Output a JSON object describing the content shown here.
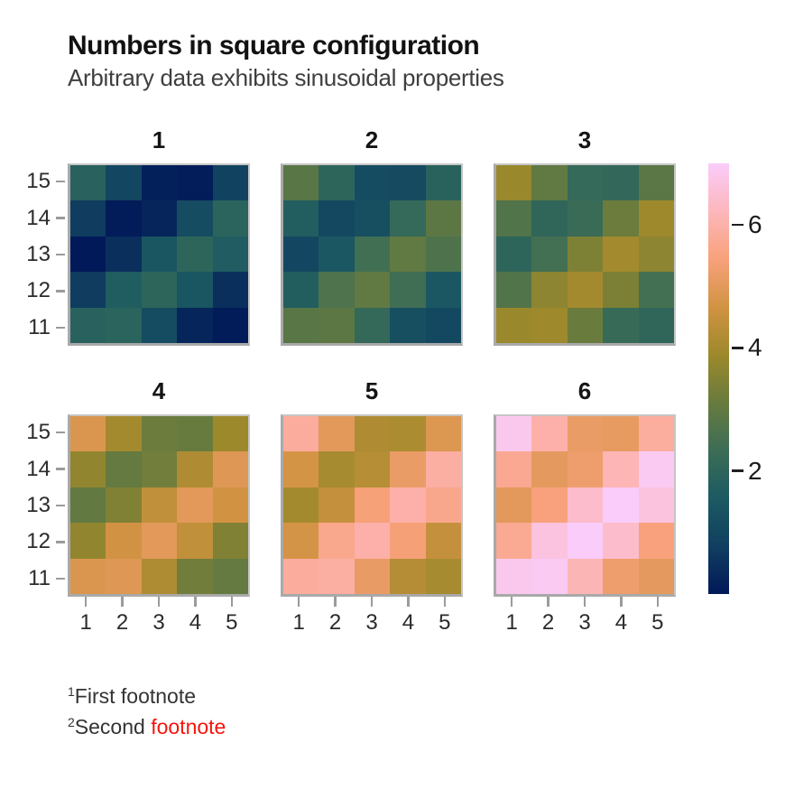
{
  "title": "Numbers in square configuration",
  "subtitle": "Arbitrary data exhibits sinusoidal properties",
  "footnotes": [
    {
      "sup": "1",
      "text": "First footnote",
      "highlight": ""
    },
    {
      "sup": "2",
      "text": "Second ",
      "highlight": "footnote"
    }
  ],
  "colors": {
    "background": "#ffffff",
    "title": "#121212",
    "subtitle": "#3f3f3f",
    "axis_label": "#2b2b2b",
    "tick_mark": "#9b9b9b",
    "panel_frame": "#c6c6c6",
    "colorbar_tick": "#1f1f1f",
    "footnote_text": "#333333",
    "footnote_highlight": "#f5150c"
  },
  "chart_data": {
    "type": "heatmap",
    "title": "Numbers in square configuration",
    "subtitle": "Arbitrary data exhibits sinusoidal properties",
    "layout": "2 rows x 3 columns of facet panels, shared axes, colorbar at right",
    "x_ticks": [
      "1",
      "2",
      "3",
      "4",
      "5"
    ],
    "y_ticks": [
      "15",
      "14",
      "13",
      "12",
      "11"
    ],
    "rows_listed_top_to_bottom": true,
    "grid": false,
    "colormap": {
      "name": "batlow",
      "stops": [
        {
          "t": 0.0,
          "c": "#011959"
        },
        {
          "t": 0.111,
          "c": "#103F60"
        },
        {
          "t": 0.222,
          "c": "#1C5A62"
        },
        {
          "t": 0.333,
          "c": "#3C6D56"
        },
        {
          "t": 0.444,
          "c": "#687B3E"
        },
        {
          "t": 0.556,
          "c": "#9D892B"
        },
        {
          "t": 0.667,
          "c": "#D29343"
        },
        {
          "t": 0.778,
          "c": "#F8A17B"
        },
        {
          "t": 0.889,
          "c": "#FDB7BC"
        },
        {
          "t": 1.0,
          "c": "#FACCFA"
        }
      ]
    },
    "colorbar": {
      "domain": [
        0,
        7
      ],
      "position": "right",
      "ticks": [
        {
          "value": 6,
          "label": "6"
        },
        {
          "value": 4,
          "label": "4"
        },
        {
          "value": 2,
          "label": "2"
        }
      ]
    },
    "facets": [
      {
        "label": "1",
        "rows": [
          [
            1.84,
            0.99,
            0.15,
            0.09,
            0.87
          ],
          [
            0.71,
            0.04,
            0.25,
            1.15,
            1.91
          ],
          [
            0.0,
            0.46,
            1.42,
            1.99,
            1.65
          ],
          [
            0.72,
            1.66,
            1.99,
            1.41,
            0.46
          ],
          [
            1.84,
            1.91,
            1.14,
            0.24,
            0.04
          ]
        ]
      },
      {
        "label": "2",
        "rows": [
          [
            2.84,
            1.99,
            1.15,
            1.09,
            1.87
          ],
          [
            1.71,
            1.04,
            1.25,
            2.15,
            2.91
          ],
          [
            1.0,
            1.46,
            2.42,
            2.99,
            2.65
          ],
          [
            1.72,
            2.66,
            2.99,
            2.41,
            1.46
          ],
          [
            2.84,
            2.91,
            2.14,
            1.24,
            1.04
          ]
        ]
      },
      {
        "label": "3",
        "rows": [
          [
            3.84,
            2.99,
            2.15,
            2.09,
            2.87
          ],
          [
            2.71,
            2.04,
            2.25,
            3.15,
            3.91
          ],
          [
            2.0,
            2.46,
            3.42,
            3.99,
            3.65
          ],
          [
            2.72,
            3.66,
            3.99,
            3.41,
            2.46
          ],
          [
            3.84,
            3.91,
            3.14,
            2.24,
            2.04
          ]
        ]
      },
      {
        "label": "4",
        "rows": [
          [
            4.84,
            3.99,
            3.15,
            3.09,
            3.87
          ],
          [
            3.71,
            3.04,
            3.25,
            4.15,
            4.91
          ],
          [
            3.0,
            3.46,
            4.42,
            4.99,
            4.65
          ],
          [
            3.72,
            4.66,
            4.99,
            4.41,
            3.46
          ],
          [
            4.84,
            4.91,
            4.14,
            3.24,
            3.04
          ]
        ]
      },
      {
        "label": "5",
        "rows": [
          [
            5.84,
            4.99,
            4.15,
            4.09,
            4.87
          ],
          [
            4.71,
            4.04,
            4.25,
            5.15,
            5.91
          ],
          [
            4.0,
            4.46,
            5.42,
            5.99,
            5.65
          ],
          [
            4.72,
            5.66,
            5.99,
            5.41,
            4.46
          ],
          [
            5.84,
            5.91,
            5.14,
            4.24,
            4.04
          ]
        ]
      },
      {
        "label": "6",
        "rows": [
          [
            6.84,
            5.99,
            5.15,
            5.09,
            5.87
          ],
          [
            5.71,
            5.04,
            5.25,
            6.15,
            6.91
          ],
          [
            5.0,
            5.46,
            6.42,
            6.99,
            6.65
          ],
          [
            5.72,
            6.66,
            6.99,
            6.41,
            5.46
          ],
          [
            6.84,
            6.91,
            6.14,
            5.24,
            5.04
          ]
        ]
      }
    ]
  }
}
